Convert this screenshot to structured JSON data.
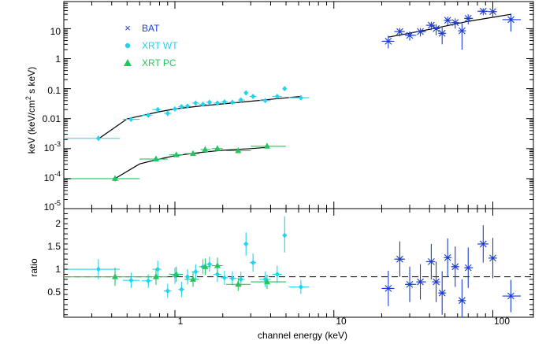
{
  "chart_data": [
    {
      "type": "scatter",
      "panel": "spectrum",
      "ylabel_parts": [
        "keV (keV/cm",
        "2",
        " s keV)"
      ],
      "xscale": "log",
      "yscale": "log",
      "xlim": [
        0.2,
        180
      ],
      "ylim": [
        1e-05,
        80
      ],
      "y_tick_labels": [
        "10",
        "1",
        "0.1",
        "0.01",
        "10-3",
        "10-4",
        "10-5"
      ],
      "legend": {
        "placement": "top-left",
        "entries": [
          {
            "label": "BAT",
            "marker": "cross",
            "color": "#1a3ccf"
          },
          {
            "label": "XRT WT",
            "marker": "circle",
            "color": "#22d3ee"
          },
          {
            "label": "XRT PC",
            "marker": "triangle",
            "color": "#22c55e"
          }
        ]
      },
      "series": [
        {
          "name": "XRT WT",
          "color": "#22d3ee",
          "marker": "diamond",
          "points": [
            {
              "x": 0.33,
              "y": 0.0022,
              "xlo": 0.2,
              "xhi": 0.45,
              "ylo": 0.0018,
              "yhi": 0.0027
            },
            {
              "x": 0.53,
              "y": 0.0095,
              "xlo": 0.47,
              "xhi": 0.6,
              "ylo": 0.008,
              "yhi": 0.011
            },
            {
              "x": 0.68,
              "y": 0.013,
              "xlo": 0.62,
              "xhi": 0.72,
              "ylo": 0.011,
              "yhi": 0.015
            },
            {
              "x": 0.78,
              "y": 0.02,
              "xlo": 0.72,
              "xhi": 0.82,
              "ylo": 0.017,
              "yhi": 0.023
            },
            {
              "x": 0.9,
              "y": 0.015,
              "xlo": 0.85,
              "xhi": 0.95,
              "ylo": 0.012,
              "yhi": 0.018
            },
            {
              "x": 1.0,
              "y": 0.021,
              "xlo": 0.96,
              "xhi": 1.05,
              "ylo": 0.018,
              "yhi": 0.024
            },
            {
              "x": 1.1,
              "y": 0.025,
              "xlo": 1.05,
              "xhi": 1.15,
              "ylo": 0.021,
              "yhi": 0.029
            },
            {
              "x": 1.2,
              "y": 0.026,
              "xlo": 1.15,
              "xhi": 1.25,
              "ylo": 0.022,
              "yhi": 0.03
            },
            {
              "x": 1.35,
              "y": 0.033,
              "xlo": 1.28,
              "xhi": 1.42,
              "ylo": 0.028,
              "yhi": 0.038
            },
            {
              "x": 1.5,
              "y": 0.03,
              "xlo": 1.42,
              "xhi": 1.58,
              "ylo": 0.026,
              "yhi": 0.034
            },
            {
              "x": 1.65,
              "y": 0.035,
              "xlo": 1.58,
              "xhi": 1.72,
              "ylo": 0.03,
              "yhi": 0.04
            },
            {
              "x": 1.85,
              "y": 0.033,
              "xlo": 1.75,
              "xhi": 1.95,
              "ylo": 0.028,
              "yhi": 0.038
            },
            {
              "x": 2.05,
              "y": 0.036,
              "xlo": 1.95,
              "xhi": 2.15,
              "ylo": 0.031,
              "yhi": 0.041
            },
            {
              "x": 2.3,
              "y": 0.035,
              "xlo": 2.2,
              "xhi": 2.45,
              "ylo": 0.03,
              "yhi": 0.04
            },
            {
              "x": 2.6,
              "y": 0.042,
              "xlo": 2.5,
              "xhi": 2.75,
              "ylo": 0.036,
              "yhi": 0.048
            },
            {
              "x": 2.8,
              "y": 0.072,
              "xlo": 2.75,
              "xhi": 2.9,
              "ylo": 0.06,
              "yhi": 0.085
            },
            {
              "x": 3.1,
              "y": 0.055,
              "xlo": 2.95,
              "xhi": 3.25,
              "ylo": 0.047,
              "yhi": 0.063
            },
            {
              "x": 3.7,
              "y": 0.04,
              "xlo": 3.4,
              "xhi": 4.0,
              "ylo": 0.034,
              "yhi": 0.046
            },
            {
              "x": 4.4,
              "y": 0.055,
              "xlo": 4.1,
              "xhi": 4.7,
              "ylo": 0.046,
              "yhi": 0.064
            },
            {
              "x": 4.9,
              "y": 0.1,
              "xlo": 4.75,
              "xhi": 5.05,
              "ylo": 0.085,
              "yhi": 0.115
            },
            {
              "x": 6.2,
              "y": 0.05,
              "xlo": 5.2,
              "xhi": 7.0,
              "ylo": 0.042,
              "yhi": 0.058
            }
          ]
        },
        {
          "name": "XRT PC",
          "color": "#22c55e",
          "marker": "triangle",
          "points": [
            {
              "x": 0.42,
              "y": 0.0001,
              "xlo": 0.2,
              "xhi": 0.6,
              "ylo": 8e-05,
              "yhi": 0.000115
            },
            {
              "x": 0.76,
              "y": 0.00045,
              "xlo": 0.6,
              "xhi": 0.9,
              "ylo": 0.00038,
              "yhi": 0.00052
            },
            {
              "x": 1.02,
              "y": 0.00062,
              "xlo": 0.92,
              "xhi": 1.12,
              "ylo": 0.00053,
              "yhi": 0.00071
            },
            {
              "x": 1.3,
              "y": 0.00068,
              "xlo": 1.15,
              "xhi": 1.42,
              "ylo": 0.00058,
              "yhi": 0.00078
            },
            {
              "x": 1.55,
              "y": 0.00093,
              "xlo": 1.45,
              "xhi": 1.68,
              "ylo": 0.00079,
              "yhi": 0.00107
            },
            {
              "x": 1.85,
              "y": 0.001,
              "xlo": 1.7,
              "xhi": 2.0,
              "ylo": 0.00085,
              "yhi": 0.00115
            },
            {
              "x": 2.5,
              "y": 0.00085,
              "xlo": 2.1,
              "xhi": 3.0,
              "ylo": 0.00072,
              "yhi": 0.00098
            },
            {
              "x": 3.8,
              "y": 0.0012,
              "xlo": 3.0,
              "xhi": 5.0,
              "ylo": 0.001,
              "yhi": 0.0014
            }
          ]
        },
        {
          "name": "BAT",
          "color": "#1a3ccf",
          "marker": "star",
          "points": [
            {
              "x": 22,
              "y": 3.8,
              "xlo": 20,
              "xhi": 24,
              "ylo": 2.2,
              "yhi": 5.8
            },
            {
              "x": 26,
              "y": 8.0,
              "xlo": 24,
              "xhi": 28,
              "ylo": 5.5,
              "yhi": 10.5
            },
            {
              "x": 30,
              "y": 6.0,
              "xlo": 28,
              "xhi": 33,
              "ylo": 4.0,
              "yhi": 8.0
            },
            {
              "x": 35,
              "y": 8.0,
              "xlo": 33,
              "xhi": 38,
              "ylo": 5.5,
              "yhi": 10.5
            },
            {
              "x": 41,
              "y": 13,
              "xlo": 38,
              "xhi": 43,
              "ylo": 9,
              "yhi": 17
            },
            {
              "x": 44,
              "y": 10,
              "xlo": 43,
              "xhi": 46,
              "ylo": 6,
              "yhi": 14
            },
            {
              "x": 48,
              "y": 7,
              "xlo": 46,
              "xhi": 50,
              "ylo": 3,
              "yhi": 11
            },
            {
              "x": 52,
              "y": 19,
              "xlo": 50,
              "xhi": 54,
              "ylo": 13,
              "yhi": 25
            },
            {
              "x": 58,
              "y": 16,
              "xlo": 55,
              "xhi": 61,
              "ylo": 10,
              "yhi": 22
            },
            {
              "x": 64,
              "y": 8.5,
              "xlo": 61,
              "xhi": 67,
              "ylo": 2,
              "yhi": 15
            },
            {
              "x": 70,
              "y": 22,
              "xlo": 67,
              "xhi": 75,
              "ylo": 14,
              "yhi": 30
            },
            {
              "x": 87,
              "y": 38,
              "xlo": 80,
              "xhi": 94,
              "ylo": 28,
              "yhi": 48
            },
            {
              "x": 100,
              "y": 37,
              "xlo": 94,
              "xhi": 106,
              "ylo": 25,
              "yhi": 49
            },
            {
              "x": 130,
              "y": 20,
              "xlo": 115,
              "xhi": 150,
              "ylo": 8,
              "yhi": 32
            }
          ]
        }
      ],
      "model_lines": [
        {
          "color": "#000000",
          "points": [
            [
              0.33,
              0.0021
            ],
            [
              0.5,
              0.0098
            ],
            [
              0.8,
              0.017
            ],
            [
              1.0,
              0.021
            ],
            [
              1.5,
              0.027
            ],
            [
              2.0,
              0.031
            ],
            [
              3.0,
              0.038
            ],
            [
              4.0,
              0.044
            ],
            [
              6.2,
              0.055
            ]
          ]
        },
        {
          "color": "#000000",
          "points": [
            [
              0.42,
              0.0001
            ],
            [
              0.6,
              0.00031
            ],
            [
              0.8,
              0.00045
            ],
            [
              1.0,
              0.00058
            ],
            [
              1.5,
              0.00076
            ],
            [
              2.0,
              0.00088
            ],
            [
              3.0,
              0.001
            ],
            [
              3.8,
              0.0011
            ]
          ]
        },
        {
          "color": "#000000",
          "points": [
            [
              22,
              5.2
            ],
            [
              40,
              9.5
            ],
            [
              70,
              17.5
            ],
            [
              130,
              30
            ]
          ]
        }
      ]
    },
    {
      "type": "scatter",
      "panel": "ratio",
      "xlabel": "channel energy (keV)",
      "ylabel": "ratio",
      "xscale": "log",
      "yscale": "linear",
      "xlim": [
        0.2,
        180
      ],
      "ylim": [
        0.2,
        2.35
      ],
      "x_tick_labels": [
        "1",
        "10",
        "100"
      ],
      "y_tick_labels": [
        "0.5",
        "1",
        "1.5",
        "2"
      ],
      "reference_line": 1,
      "series": [
        {
          "name": "XRT WT",
          "color": "#22d3ee",
          "marker": "diamond",
          "points": [
            {
              "x": 0.33,
              "y": 1.15,
              "xlo": 0.2,
              "xhi": 0.45,
              "ylo": 0.95,
              "yhi": 1.35
            },
            {
              "x": 0.53,
              "y": 0.93,
              "xlo": 0.47,
              "xhi": 0.6,
              "ylo": 0.78,
              "yhi": 1.08
            },
            {
              "x": 0.68,
              "y": 0.92,
              "xlo": 0.62,
              "xhi": 0.72,
              "ylo": 0.78,
              "yhi": 1.05
            },
            {
              "x": 0.78,
              "y": 1.15,
              "xlo": 0.72,
              "xhi": 0.82,
              "ylo": 0.98,
              "yhi": 1.32
            },
            {
              "x": 0.9,
              "y": 0.72,
              "xlo": 0.85,
              "xhi": 0.95,
              "ylo": 0.58,
              "yhi": 0.86
            },
            {
              "x": 1.0,
              "y": 1.02,
              "xlo": 0.96,
              "xhi": 1.05,
              "ylo": 0.86,
              "yhi": 1.18
            },
            {
              "x": 1.1,
              "y": 0.75,
              "xlo": 1.05,
              "xhi": 1.15,
              "ylo": 0.6,
              "yhi": 0.9
            },
            {
              "x": 1.2,
              "y": 1.0,
              "xlo": 1.15,
              "xhi": 1.25,
              "ylo": 0.85,
              "yhi": 1.15
            },
            {
              "x": 1.35,
              "y": 1.1,
              "xlo": 1.28,
              "xhi": 1.42,
              "ylo": 0.95,
              "yhi": 1.25
            },
            {
              "x": 1.5,
              "y": 1.2,
              "xlo": 1.42,
              "xhi": 1.58,
              "ylo": 1.05,
              "yhi": 1.35
            },
            {
              "x": 1.65,
              "y": 1.25,
              "xlo": 1.58,
              "xhi": 1.72,
              "ylo": 1.1,
              "yhi": 1.4
            },
            {
              "x": 1.85,
              "y": 1.05,
              "xlo": 1.75,
              "xhi": 1.95,
              "ylo": 0.9,
              "yhi": 1.2
            },
            {
              "x": 2.05,
              "y": 0.98,
              "xlo": 1.95,
              "xhi": 2.15,
              "ylo": 0.84,
              "yhi": 1.12
            },
            {
              "x": 2.3,
              "y": 0.97,
              "xlo": 2.2,
              "xhi": 2.45,
              "ylo": 0.83,
              "yhi": 1.11
            },
            {
              "x": 2.6,
              "y": 0.95,
              "xlo": 2.5,
              "xhi": 2.75,
              "ylo": 0.8,
              "yhi": 1.1
            },
            {
              "x": 2.8,
              "y": 1.65,
              "xlo": 2.75,
              "xhi": 2.9,
              "ylo": 1.42,
              "yhi": 1.88
            },
            {
              "x": 3.1,
              "y": 1.28,
              "xlo": 2.95,
              "xhi": 3.25,
              "ylo": 1.1,
              "yhi": 1.46
            },
            {
              "x": 3.7,
              "y": 0.95,
              "xlo": 3.4,
              "xhi": 4.0,
              "ylo": 0.8,
              "yhi": 1.1
            },
            {
              "x": 4.4,
              "y": 1.05,
              "xlo": 4.1,
              "xhi": 4.7,
              "ylo": 0.88,
              "yhi": 1.22
            },
            {
              "x": 4.9,
              "y": 1.82,
              "xlo": 4.75,
              "xhi": 5.05,
              "ylo": 1.48,
              "yhi": 2.2
            },
            {
              "x": 6.2,
              "y": 0.8,
              "xlo": 5.2,
              "xhi": 7.0,
              "ylo": 0.66,
              "yhi": 0.94
            }
          ]
        },
        {
          "name": "XRT PC",
          "color": "#22c55e",
          "marker": "triangle",
          "points": [
            {
              "x": 0.42,
              "y": 1.0,
              "xlo": 0.2,
              "xhi": 0.6,
              "ylo": 0.82,
              "yhi": 1.18
            },
            {
              "x": 0.76,
              "y": 1.0,
              "xlo": 0.6,
              "xhi": 0.9,
              "ylo": 0.84,
              "yhi": 1.16
            },
            {
              "x": 1.02,
              "y": 1.05,
              "xlo": 0.92,
              "xhi": 1.12,
              "ylo": 0.9,
              "yhi": 1.2
            },
            {
              "x": 1.3,
              "y": 0.95,
              "xlo": 1.15,
              "xhi": 1.42,
              "ylo": 0.8,
              "yhi": 1.1
            },
            {
              "x": 1.55,
              "y": 1.2,
              "xlo": 1.45,
              "xhi": 1.68,
              "ylo": 1.04,
              "yhi": 1.36
            },
            {
              "x": 1.85,
              "y": 1.22,
              "xlo": 1.7,
              "xhi": 2.0,
              "ylo": 1.06,
              "yhi": 1.38
            },
            {
              "x": 2.5,
              "y": 0.85,
              "xlo": 2.1,
              "xhi": 3.0,
              "ylo": 0.72,
              "yhi": 0.98
            },
            {
              "x": 3.8,
              "y": 0.9,
              "xlo": 3.0,
              "xhi": 5.0,
              "ylo": 0.76,
              "yhi": 1.04
            }
          ]
        },
        {
          "name": "BAT",
          "color": "#1a3ccf",
          "marker": "star",
          "points": [
            {
              "x": 22,
              "y": 0.77,
              "xlo": 20,
              "xhi": 24,
              "ylo": 0.42,
              "yhi": 1.12
            },
            {
              "x": 26,
              "y": 1.35,
              "xlo": 24,
              "xhi": 28,
              "ylo": 1.0,
              "yhi": 1.7
            },
            {
              "x": 30,
              "y": 0.85,
              "xlo": 28,
              "xhi": 33,
              "ylo": 0.5,
              "yhi": 1.2
            },
            {
              "x": 35,
              "y": 0.9,
              "xlo": 33,
              "xhi": 38,
              "ylo": 0.55,
              "yhi": 1.25
            },
            {
              "x": 41,
              "y": 1.3,
              "xlo": 38,
              "xhi": 43,
              "ylo": 0.95,
              "yhi": 1.65
            },
            {
              "x": 44,
              "y": 0.9,
              "xlo": 43,
              "xhi": 46,
              "ylo": 0.5,
              "yhi": 1.3
            },
            {
              "x": 48,
              "y": 0.68,
              "xlo": 46,
              "xhi": 50,
              "ylo": 0.25,
              "yhi": 1.11
            },
            {
              "x": 52,
              "y": 1.38,
              "xlo": 50,
              "xhi": 54,
              "ylo": 1.0,
              "yhi": 1.76
            },
            {
              "x": 58,
              "y": 1.2,
              "xlo": 55,
              "xhi": 61,
              "ylo": 0.8,
              "yhi": 1.6
            },
            {
              "x": 64,
              "y": 0.53,
              "xlo": 61,
              "xhi": 67,
              "ylo": 0.2,
              "yhi": 0.95
            },
            {
              "x": 70,
              "y": 1.18,
              "xlo": 67,
              "xhi": 75,
              "ylo": 0.78,
              "yhi": 1.58
            },
            {
              "x": 87,
              "y": 1.65,
              "xlo": 80,
              "xhi": 94,
              "ylo": 1.28,
              "yhi": 2.02
            },
            {
              "x": 100,
              "y": 1.37,
              "xlo": 94,
              "xhi": 106,
              "ylo": 0.97,
              "yhi": 1.77
            },
            {
              "x": 130,
              "y": 0.62,
              "xlo": 115,
              "xhi": 150,
              "ylo": 0.3,
              "yhi": 0.94
            }
          ]
        }
      ]
    }
  ]
}
